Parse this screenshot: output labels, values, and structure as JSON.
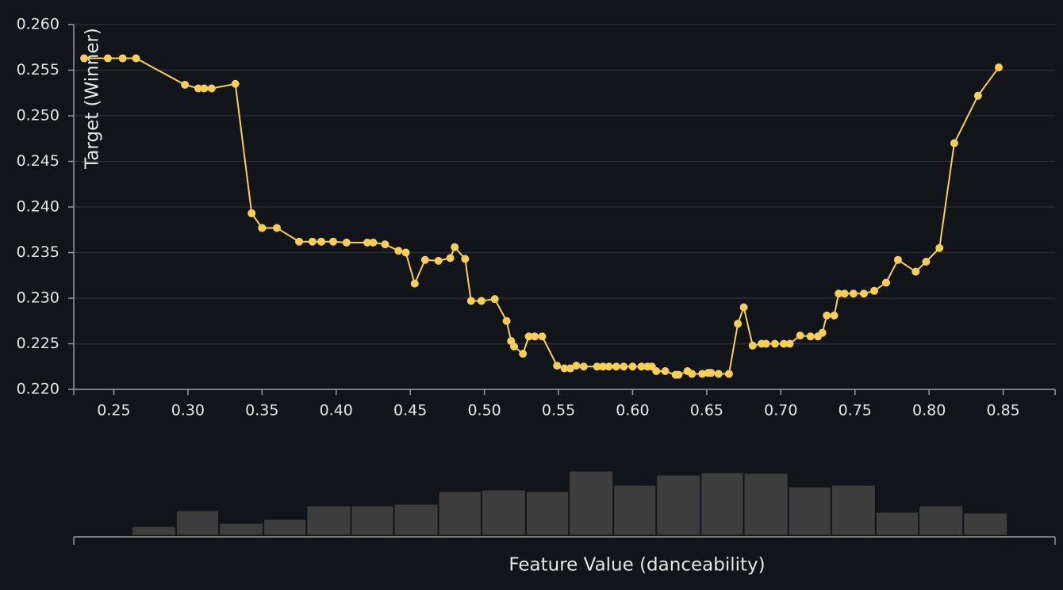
{
  "chart_data": [
    {
      "type": "line",
      "ylabel": "Target (Winner)",
      "color": "#f7cf57",
      "grid": true,
      "xlim": [
        0.223,
        0.885
      ],
      "ylim": [
        0.22,
        0.26
      ],
      "xticks": [
        0.25,
        {
          "value": 0.3,
          "label": "0.30"
        },
        0.35,
        {
          "value": 0.4,
          "label": "0.40"
        },
        0.45,
        {
          "value": 0.5,
          "label": "0.50"
        },
        0.55,
        {
          "value": 0.6,
          "label": "0.60"
        },
        0.65,
        {
          "value": 0.7,
          "label": "0.70"
        },
        0.75,
        {
          "value": 0.8,
          "label": "0.80"
        },
        0.85
      ],
      "yticks": [
        {
          "value": 0.22,
          "label": "0.220"
        },
        {
          "value": 0.225,
          "label": "0.225"
        },
        {
          "value": 0.23,
          "label": "0.230"
        },
        {
          "value": 0.235,
          "label": "0.235"
        },
        {
          "value": 0.24,
          "label": "0.240"
        },
        {
          "value": 0.245,
          "label": "0.245"
        },
        {
          "value": 0.25,
          "label": "0.250"
        },
        {
          "value": 0.255,
          "label": "0.255"
        },
        {
          "value": 0.26,
          "label": "0.260"
        }
      ],
      "x": [
        0.23,
        0.246,
        0.256,
        0.265,
        0.298,
        0.307,
        0.311,
        0.316,
        0.332,
        0.343,
        0.35,
        0.36,
        0.375,
        0.384,
        0.39,
        0.398,
        0.407,
        0.421,
        0.425,
        0.433,
        0.442,
        0.447,
        0.453,
        0.46,
        0.469,
        0.477,
        0.48,
        0.487,
        0.491,
        0.498,
        0.507,
        0.515,
        0.518,
        0.52,
        0.526,
        0.53,
        0.534,
        0.539,
        0.549,
        0.554,
        0.558,
        0.562,
        0.567,
        0.576,
        0.58,
        0.584,
        0.589,
        0.594,
        0.6,
        0.606,
        0.61,
        0.613,
        0.616,
        0.622,
        0.629,
        0.631,
        0.637,
        0.64,
        0.647,
        0.651,
        0.653,
        0.658,
        0.665,
        0.671,
        0.675,
        0.681,
        0.687,
        0.69,
        0.696,
        0.702,
        0.706,
        0.713,
        0.72,
        0.725,
        0.728,
        0.731,
        0.736,
        0.739,
        0.743,
        0.749,
        0.756,
        0.763,
        0.771,
        0.779,
        0.791,
        0.798,
        0.807,
        0.817,
        0.833,
        0.847
      ],
      "values": [
        0.2563,
        0.2563,
        0.2563,
        0.2563,
        0.2534,
        0.253,
        0.253,
        0.253,
        0.2535,
        0.2393,
        0.2377,
        0.2377,
        0.2362,
        0.2362,
        0.2362,
        0.2362,
        0.2361,
        0.2361,
        0.2361,
        0.2359,
        0.2352,
        0.235,
        0.2316,
        0.2342,
        0.2341,
        0.2344,
        0.2356,
        0.2343,
        0.2297,
        0.2297,
        0.2299,
        0.2275,
        0.2253,
        0.2247,
        0.2239,
        0.2258,
        0.2258,
        0.2258,
        0.2226,
        0.2223,
        0.2223,
        0.2226,
        0.2225,
        0.2225,
        0.2225,
        0.2225,
        0.2225,
        0.2225,
        0.2225,
        0.2225,
        0.2225,
        0.2225,
        0.222,
        0.222,
        0.2216,
        0.2216,
        0.222,
        0.2217,
        0.2217,
        0.2218,
        0.2218,
        0.2217,
        0.2217,
        0.2272,
        0.229,
        0.2248,
        0.225,
        0.225,
        0.225,
        0.225,
        0.225,
        0.2259,
        0.2258,
        0.2258,
        0.2262,
        0.2281,
        0.2281,
        0.2305,
        0.2305,
        0.2305,
        0.2305,
        0.2308,
        0.2317,
        0.2342,
        0.2329,
        0.234,
        0.2355,
        0.247,
        0.2522,
        0.2553
      ]
    },
    {
      "type": "histogram",
      "xlabel": "Feature Value (danceability)",
      "color": "#3d3d3d",
      "xlim": [
        0.223,
        0.885
      ],
      "bins": [
        0.262,
        0.292,
        0.321,
        0.351,
        0.38,
        0.41,
        0.439,
        0.469,
        0.498,
        0.528,
        0.557,
        0.587,
        0.616,
        0.646,
        0.675,
        0.705,
        0.734,
        0.764,
        0.793,
        0.823,
        0.853
      ],
      "values": [
        11,
        31,
        15,
        20,
        37,
        37,
        39,
        55,
        57,
        55,
        81,
        63,
        76,
        79,
        78,
        61,
        63,
        29,
        37,
        28
      ]
    }
  ]
}
